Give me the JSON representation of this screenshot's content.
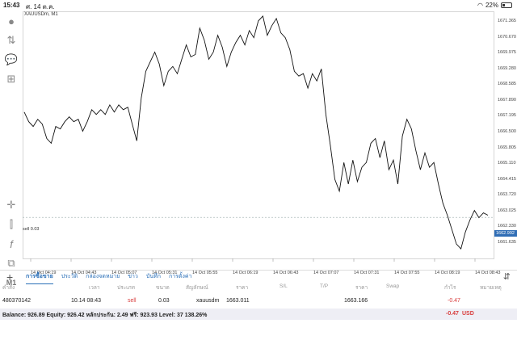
{
  "status_bar": {
    "time": "15:43",
    "date": "ศ. 14 ต.ค.",
    "battery": "22%"
  },
  "toolbar": {
    "timeframe": "M1"
  },
  "chart": {
    "symbol": "XAUUSDm, M1",
    "sell_line_label": "sell 0.03",
    "current_price": "1662.992",
    "y_ticks": [
      "1671.365",
      "1670.670",
      "1669.975",
      "1669.280",
      "1668.585",
      "1667.890",
      "1667.195",
      "1666.500",
      "1665.805",
      "1665.110",
      "1664.415",
      "1663.720",
      "1663.025",
      "1662.330",
      "1661.635"
    ],
    "x_ticks": [
      "14 Oct 04:19",
      "14 Oct 04:43",
      "14 Oct 05:07",
      "14 Oct 05:31",
      "14 Oct 05:55",
      "14 Oct 06:19",
      "14 Oct 06:43",
      "14 Oct 07:07",
      "14 Oct 07:31",
      "14 Oct 07:55",
      "14 Oct 08:19",
      "14 Oct 08:43"
    ]
  },
  "chart_data": {
    "type": "line",
    "ylim": [
      1661.3,
      1671.6
    ],
    "values": [
      1667.4,
      1667.0,
      1666.8,
      1667.1,
      1666.9,
      1666.3,
      1666.1,
      1666.8,
      1666.7,
      1667.0,
      1667.2,
      1667.0,
      1667.1,
      1666.6,
      1667.0,
      1667.5,
      1667.3,
      1667.5,
      1667.3,
      1667.7,
      1667.4,
      1667.7,
      1667.5,
      1667.6,
      1666.9,
      1666.2,
      1668.0,
      1669.1,
      1669.5,
      1669.9,
      1669.4,
      1668.5,
      1669.1,
      1669.3,
      1669.0,
      1669.6,
      1670.2,
      1669.7,
      1669.8,
      1670.9,
      1670.4,
      1669.6,
      1669.9,
      1670.6,
      1670.1,
      1669.3,
      1669.9,
      1670.3,
      1670.6,
      1670.2,
      1670.8,
      1670.5,
      1671.2,
      1671.4,
      1670.6,
      1671.0,
      1671.3,
      1670.7,
      1670.5,
      1670.0,
      1669.1,
      1668.9,
      1669.0,
      1668.4,
      1669.0,
      1668.7,
      1669.2,
      1667.3,
      1666.0,
      1664.6,
      1664.1,
      1665.3,
      1664.4,
      1665.4,
      1664.5,
      1665.1,
      1665.3,
      1666.1,
      1666.3,
      1665.5,
      1666.2,
      1665.0,
      1665.4,
      1664.4,
      1666.4,
      1667.1,
      1666.7,
      1665.8,
      1665.0,
      1665.7,
      1665.1,
      1665.3,
      1664.4,
      1663.6,
      1663.1,
      1662.5,
      1661.9,
      1661.7,
      1662.4,
      1662.9,
      1663.3,
      1663.0,
      1663.2,
      1663.1
    ]
  },
  "tabs": [
    "การซื้อขาย",
    "ประวัติ",
    "กล่องจดหมาย",
    "ข่าว",
    "บันทึก",
    "การตั้งค่า"
  ],
  "trade_columns": {
    "order": "คำสั่ง",
    "time": "เวลา",
    "type": "ประเภท",
    "volume": "ขนาด",
    "symbol": "สัญลักษณ์",
    "price": "ราคา",
    "sl": "S/L",
    "tp": "T/P",
    "cur_price": "ราคา",
    "swap": "Swap",
    "profit": "กำไร",
    "comment": "หมายเหตุ"
  },
  "trade": {
    "order": "480370142",
    "time": "10.14 08:43",
    "type": "sell",
    "volume": "0.03",
    "symbol": "xauusdm",
    "price": "1663.011",
    "cur_price": "1663.166",
    "profit": "-0.47"
  },
  "balance": {
    "summary": "Balance: 926.89 Equity: 926.42 หลักประกัน: 2.49 ฟรี: 923.93 Level: 37 138.26%",
    "profit": "-0.47",
    "currency": "USD"
  },
  "colors": {
    "accent": "#2a6fb8",
    "negative": "#d83b3b",
    "price_tag": "#2f6db5"
  }
}
